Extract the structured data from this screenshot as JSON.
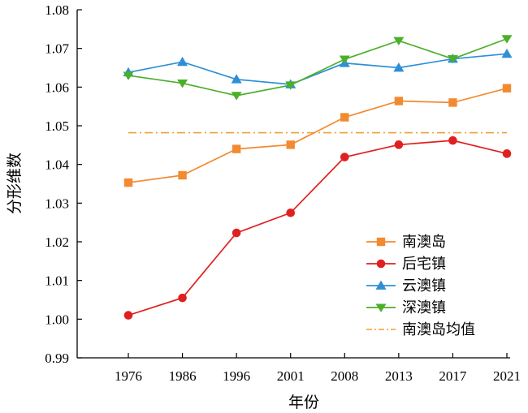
{
  "chart_data": {
    "type": "line",
    "title": "",
    "xlabel": "年份",
    "ylabel": "分形维数",
    "categories": [
      "1976",
      "1986",
      "1996",
      "2001",
      "2008",
      "2013",
      "2017",
      "2021"
    ],
    "yticks": [
      "0.99",
      "1.00",
      "1.01",
      "1.02",
      "1.03",
      "1.04",
      "1.05",
      "1.06",
      "1.07",
      "1.08"
    ],
    "ylim": [
      0.99,
      1.08
    ],
    "grid": false,
    "legend_position": "bottom-right",
    "series": [
      {
        "name": "南澳岛",
        "color": "#f28a30",
        "marker": "square",
        "values": [
          1.0353,
          1.0372,
          1.044,
          1.0451,
          1.0522,
          1.0564,
          1.056,
          1.0597
        ]
      },
      {
        "name": "后宅镇",
        "color": "#e02020",
        "marker": "circle",
        "values": [
          1.001,
          1.0055,
          1.0223,
          1.0275,
          1.0419,
          1.0451,
          1.0462,
          1.0428
        ]
      },
      {
        "name": "云澳镇",
        "color": "#2e8fd6",
        "marker": "triangle",
        "values": [
          1.0638,
          1.0665,
          1.062,
          1.0607,
          1.0662,
          1.065,
          1.0673,
          1.0686
        ]
      },
      {
        "name": "深澳镇",
        "color": "#4caf2a",
        "marker": "diamond",
        "values": [
          1.063,
          1.061,
          1.0578,
          1.0605,
          1.0672,
          1.072,
          1.0673,
          1.0725
        ]
      }
    ],
    "reference_line": {
      "name": "南澳岛均值",
      "value": 1.0482,
      "color": "#f0a030",
      "style": "dash-dot"
    }
  }
}
